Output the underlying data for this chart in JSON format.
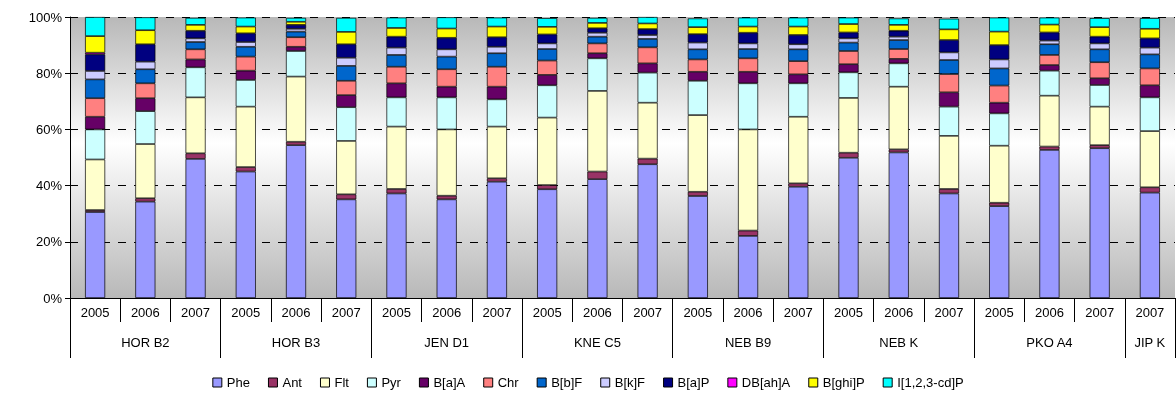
{
  "chart_data": {
    "type": "bar",
    "stacked": true,
    "categories": [
      "2005",
      "2006",
      "2007",
      "2005",
      "2006",
      "2007",
      "2005",
      "2006",
      "2007",
      "2005",
      "2006",
      "2007",
      "2005",
      "2006",
      "2007",
      "2005",
      "2006",
      "2007",
      "2005",
      "2006",
      "2007",
      "2007"
    ],
    "annotations": [
      "HOR B2",
      "HOR B3",
      "JEN D1",
      "KNE C5",
      "NEB B9",
      "NEB K",
      "PKO A4",
      "JIP K"
    ],
    "ylim": [
      0,
      100
    ],
    "yticks": [
      {
        "value": 0,
        "label": "0%"
      },
      {
        "value": 20,
        "label": "20%"
      },
      {
        "value": 40,
        "label": "40%"
      },
      {
        "value": 60,
        "label": "60%"
      },
      {
        "value": 80,
        "label": "80%"
      },
      {
        "value": 100,
        "label": "100%"
      }
    ],
    "grid": "y",
    "legend": "bottom",
    "series": [
      {
        "name": "Phe",
        "color": "#9999ff",
        "values": [
          30.6,
          34.3,
          49.5,
          45.0,
          54.4,
          35.1,
          37.2,
          35.1,
          41.4,
          38.7,
          42.3,
          47.6,
          36.3,
          22.1,
          39.6,
          49.9,
          51.8,
          37.2,
          32.7,
          52.7,
          53.3,
          37.5
        ]
      },
      {
        "name": "Ant",
        "color": "#993366",
        "values": [
          0.7,
          1.2,
          2.0,
          1.6,
          1.2,
          1.8,
          1.6,
          1.3,
          1.2,
          1.5,
          2.7,
          2.0,
          1.5,
          1.9,
          1.2,
          1.8,
          1.1,
          1.6,
          1.2,
          1.2,
          1.1,
          1.9
        ]
      },
      {
        "name": "Flt",
        "color": "#ffffcc",
        "values": [
          18.0,
          19.3,
          19.9,
          21.5,
          23.2,
          19.0,
          22.2,
          23.6,
          18.4,
          24.0,
          28.7,
          19.9,
          27.3,
          36.0,
          23.7,
          19.5,
          22.3,
          18.9,
          20.3,
          18.1,
          13.7,
          20.0
        ]
      },
      {
        "name": "Pyr",
        "color": "#ccffff",
        "values": [
          10.7,
          11.7,
          10.7,
          9.5,
          9.1,
          12.0,
          10.4,
          11.4,
          9.7,
          11.5,
          11.6,
          10.7,
          12.2,
          16.4,
          11.9,
          9.1,
          8.3,
          10.4,
          11.5,
          8.9,
          7.7,
          12.0
        ]
      },
      {
        "name": "B[a]A",
        "color": "#660066",
        "values": [
          4.5,
          4.6,
          2.8,
          3.3,
          1.5,
          4.3,
          5.0,
          3.8,
          4.5,
          3.7,
          1.8,
          3.3,
          3.2,
          4.1,
          3.2,
          2.9,
          1.6,
          5.1,
          3.8,
          2.0,
          2.4,
          4.3
        ]
      },
      {
        "name": "Chr",
        "color": "#ff8080",
        "values": [
          6.6,
          5.3,
          3.6,
          5.0,
          3.4,
          5.1,
          5.9,
          6.2,
          7.1,
          5.1,
          3.5,
          5.7,
          4.4,
          4.8,
          4.7,
          4.7,
          3.5,
          6.5,
          6.1,
          3.6,
          5.7,
          6.0
        ]
      },
      {
        "name": "B[b]F",
        "color": "#0066cc",
        "values": [
          6.7,
          5.0,
          2.6,
          3.5,
          2.0,
          5.3,
          4.2,
          4.5,
          4.8,
          4.1,
          2.4,
          3.0,
          3.6,
          3.3,
          4.2,
          3.0,
          3.2,
          5.0,
          6.1,
          3.8,
          4.6,
          5.0
        ]
      },
      {
        "name": "B[k]F",
        "color": "#ccccff",
        "values": [
          3.0,
          2.7,
          1.3,
          1.7,
          1.0,
          2.9,
          2.6,
          2.6,
          2.3,
          2.0,
          1.4,
          1.4,
          2.4,
          2.0,
          1.8,
          1.5,
          1.2,
          2.7,
          3.2,
          1.3,
          2.1,
          2.4
        ]
      },
      {
        "name": "B[a]P",
        "color": "#000080",
        "values": [
          5.9,
          6.2,
          2.7,
          3.1,
          1.4,
          4.8,
          3.9,
          4.1,
          3.4,
          3.2,
          1.6,
          2.1,
          3.0,
          3.8,
          3.3,
          2.1,
          2.1,
          4.4,
          5.1,
          2.9,
          2.4,
          3.3
        ]
      },
      {
        "name": "DB[ah]A",
        "color": "#ff00ff",
        "values": [
          0.6,
          null,
          null,
          null,
          null,
          null,
          null,
          null,
          null,
          null,
          null,
          null,
          null,
          null,
          null,
          null,
          null,
          null,
          null,
          null,
          null,
          null
        ]
      },
      {
        "name": "B[ghi]P",
        "color": "#ffff00",
        "values": [
          5.9,
          5.0,
          2.1,
          2.4,
          1.1,
          4.4,
          3.1,
          3.3,
          3.8,
          2.7,
          1.9,
          2.0,
          2.5,
          2.2,
          3.0,
          3.0,
          2.1,
          3.8,
          4.8,
          2.8,
          3.4,
          3.4
        ]
      },
      {
        "name": "I[1,2,3-cd]P",
        "color": "#00ffff",
        "values": [
          6.8,
          4.6,
          2.5,
          3.2,
          1.4,
          5.0,
          3.7,
          4.0,
          3.2,
          3.1,
          1.8,
          2.3,
          3.1,
          3.2,
          3.2,
          2.3,
          2.3,
          3.8,
          5.0,
          2.5,
          3.2,
          3.8
        ]
      }
    ]
  }
}
